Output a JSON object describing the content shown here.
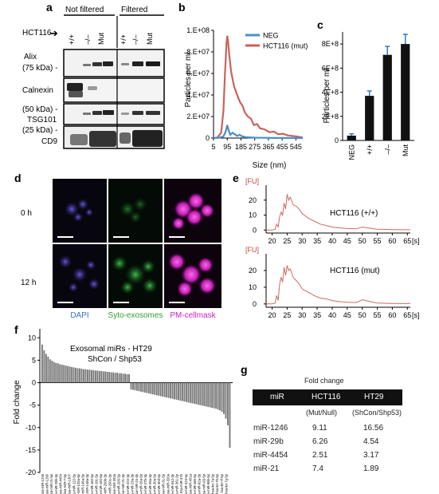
{
  "panel_a": {
    "letter": "a",
    "group_not_filtered": "Not filtered",
    "group_filtered": "Filtered",
    "cell_line": "HCT116",
    "lanes": [
      "+/+",
      "–/–",
      "Mut",
      "+/+",
      "–/–",
      "Mut"
    ],
    "blots": [
      {
        "label": "Alix",
        "sub": "(75 kDa) -"
      },
      {
        "label": "Calnexin",
        "sub": ""
      },
      {
        "label": "(50 kDa) -",
        "sub": "TSG101"
      },
      {
        "label": "(25 kDa) -",
        "sub": "CD9"
      }
    ]
  },
  "panel_b": {
    "letter": "b",
    "chart_data": {
      "type": "line",
      "xlabel": "Size (nm)",
      "ylabel": "Particles per ml",
      "x_ticks": [
        "5",
        "95",
        "185",
        "275",
        "365",
        "455",
        "545"
      ],
      "y_ticks": [
        "0",
        "2.E+07",
        "4.E+07",
        "6.E+07",
        "8.E+07",
        "1.E+08"
      ],
      "xlim": [
        5,
        590
      ],
      "ylim": [
        0,
        100000000
      ],
      "series": [
        {
          "name": "NEG",
          "color": "#4a90c8",
          "x": [
            5,
            40,
            70,
            85,
            95,
            105,
            115,
            130,
            145,
            160,
            175,
            190,
            210,
            240,
            280,
            340,
            420,
            520,
            590
          ],
          "y": [
            0,
            200000,
            1500000,
            6000000,
            12000000,
            7000000,
            3000000,
            5000000,
            3500000,
            2000000,
            3000000,
            1800000,
            1000000,
            700000,
            400000,
            200000,
            100000,
            50000,
            0
          ]
        },
        {
          "name": "HCT116 (mut)",
          "color": "#c8645a",
          "x": [
            5,
            30,
            55,
            70,
            80,
            90,
            95,
            100,
            110,
            120,
            130,
            140,
            150,
            165,
            180,
            195,
            210,
            230,
            250,
            270,
            290,
            310,
            340,
            370,
            400,
            430,
            460,
            490,
            520,
            550,
            590
          ],
          "y": [
            0,
            500000,
            5000000,
            25000000,
            60000000,
            88000000,
            95000000,
            90000000,
            75000000,
            62000000,
            55000000,
            48000000,
            44000000,
            38000000,
            33000000,
            30000000,
            24000000,
            20000000,
            18000000,
            12000000,
            13000000,
            9000000,
            8000000,
            5500000,
            6000000,
            3500000,
            4000000,
            2500000,
            2000000,
            1500000,
            500000
          ]
        }
      ]
    }
  },
  "panel_c": {
    "letter": "c",
    "chart_data": {
      "type": "bar",
      "ylabel": "Particles per ml",
      "categories": [
        "NEG",
        "+/+",
        "–/–",
        "Mut"
      ],
      "values": [
        40000000,
        370000000,
        710000000,
        800000000
      ],
      "errors": [
        15000000,
        40000000,
        70000000,
        80000000
      ],
      "y_ticks": [
        "0",
        "2E+8",
        "4E+8",
        "6E+8",
        "8E+8"
      ],
      "ylim": [
        0,
        900000000
      ],
      "bar_color": "#111111",
      "error_color": "#2f7cc0"
    }
  },
  "panel_d": {
    "letter": "d",
    "rows": [
      "0 h",
      "12 h"
    ],
    "channels": [
      {
        "label": "DAPI",
        "color": "#3a6fd0"
      },
      {
        "label": "Syto-exosomes",
        "color": "#2fa02f"
      },
      {
        "label": "PM-cellmask",
        "color": "#d020c0"
      }
    ]
  },
  "panel_e": {
    "letter": "e",
    "unit_y": "[FU]",
    "unit_x": "[s]",
    "chart_data": [
      {
        "type": "line",
        "title": "HCT116 (+/+)",
        "x_ticks": [
          "20",
          "25",
          "30",
          "35",
          "40",
          "45",
          "50",
          "55",
          "60",
          "65"
        ],
        "y_ticks": [
          "0",
          "10",
          "20"
        ],
        "xlim": [
          18,
          66
        ],
        "ylim": [
          -2,
          30
        ],
        "x": [
          18,
          20,
          21,
          21.5,
          22,
          22.5,
          23,
          23.5,
          24,
          24.5,
          25,
          25.5,
          26,
          27,
          28,
          29,
          30,
          32,
          34,
          36,
          38,
          40,
          42,
          45,
          48,
          50,
          55,
          60,
          66
        ],
        "y": [
          0,
          0,
          0.5,
          4,
          2,
          9,
          12,
          10,
          18,
          14,
          24,
          20,
          22,
          17,
          16,
          14,
          11,
          8,
          6,
          4,
          3,
          2,
          1.5,
          1,
          0.8,
          2,
          0.5,
          0.3,
          0.2
        ]
      },
      {
        "type": "line",
        "title": "HCT116 (mut)",
        "x_ticks": [
          "20",
          "25",
          "30",
          "35",
          "40",
          "45",
          "50",
          "55",
          "60",
          "65"
        ],
        "y_ticks": [
          "0",
          "10",
          "20"
        ],
        "xlim": [
          18,
          66
        ],
        "ylim": [
          -2,
          30
        ],
        "x": [
          18,
          20,
          21,
          21.5,
          22,
          22.5,
          23,
          23.5,
          24,
          24.5,
          25,
          25.5,
          26,
          27,
          28,
          29,
          30,
          32,
          34,
          36,
          38,
          40,
          42,
          45,
          48,
          50,
          55,
          60,
          66
        ],
        "y": [
          0,
          0,
          0.5,
          5,
          2,
          12,
          16,
          13,
          22,
          17,
          23,
          20,
          21,
          16,
          14,
          12,
          9,
          7,
          5,
          3.5,
          3,
          2,
          1.5,
          1,
          0.8,
          2.5,
          0.5,
          0.3,
          0.2
        ]
      }
    ]
  },
  "panel_f": {
    "letter": "f",
    "chart_data": {
      "type": "bar",
      "title": "Exosomal miRs - HT29",
      "subtitle": "ShCon / Shp53",
      "ylabel": "Fold change",
      "y_ticks": [
        "-20",
        "-15",
        "-10",
        "-5",
        "0",
        "5",
        "10"
      ],
      "ylim": [
        -20,
        12
      ],
      "n_bars": 96,
      "values": [
        8.5,
        7.2,
        6.4,
        5.8,
        5.2,
        4.9,
        4.6,
        4.4,
        4.3,
        4.1,
        4.0,
        3.9,
        3.8,
        3.7,
        3.6,
        3.5,
        3.4,
        3.3,
        3.2,
        3.2,
        3.1,
        3.0,
        3.0,
        2.9,
        2.9,
        2.8,
        2.8,
        2.7,
        2.7,
        2.6,
        2.6,
        2.5,
        2.5,
        2.4,
        2.4,
        2.3,
        2.3,
        2.2,
        2.2,
        2.1,
        2.1,
        2.0,
        2.0,
        1.9,
        1.9,
        -1.5,
        -1.6,
        -1.7,
        -1.8,
        -1.9,
        -2.0,
        -2.1,
        -2.2,
        -2.3,
        -2.4,
        -2.5,
        -2.6,
        -2.7,
        -2.8,
        -2.9,
        -3.0,
        -3.1,
        -3.2,
        -3.3,
        -3.4,
        -3.5,
        -3.6,
        -3.7,
        -3.8,
        -3.9,
        -4.0,
        -4.1,
        -4.2,
        -4.3,
        -4.4,
        -4.5,
        -4.6,
        -4.7,
        -4.8,
        -4.9,
        -5.0,
        -5.1,
        -5.2,
        -5.3,
        -5.4,
        -5.5,
        -5.6,
        -5.7,
        -5.8,
        -6.0,
        -6.2,
        -6.5,
        -7.0,
        -8.0,
        -9.5,
        -14.5
      ],
      "tick_labels": [
        "hsa-miR-1246",
        "hsa-miR-1290",
        "hsa-miR-21-5p",
        "hsa-miR-29b-3p",
        "hsa-miR-4454",
        "hsa-miR-7-5p",
        "hsa-miR-1307",
        "hsa-miR-122-5p",
        "hsa-miR-125a-5p",
        "hsa-miR-146a-5p",
        "hsa-miR-148a-3p",
        "hsa-miR-182-5p",
        "hsa-miR-191-5p",
        "hsa-miR-192-5p",
        "hsa-miR-200b-3p",
        "hsa-miR-200c-3p",
        "hsa-miR-203a",
        "hsa-miR-205-5p",
        "hsa-miR-21-3p",
        "hsa-miR-222-3p",
        "hsa-miR-23a-3p",
        "hsa-miR-24-3p",
        "hsa-miR-26a-5p",
        "hsa-miR-27b-3p",
        "hsa-miR-29a-3p",
        "hsa-miR-30a-5p",
        "hsa-miR-30d-5p",
        "hsa-miR-31-5p",
        "hsa-miR-320a",
        "hsa-miR-342-3p",
        "hsa-miR-361-5p",
        "hsa-miR-375",
        "hsa-miR-423-5p",
        "hsa-miR-451a",
        "hsa-miR-486-5p",
        "hsa-miR-92a-3p",
        "hsa-miR-93-5p",
        "hsa-miR-99b-5p",
        "hsa-let-7a-5p",
        "hsa-let-7b-5p",
        "hsa-let-7f-5p",
        "hsa-let-7g-5p"
      ]
    }
  },
  "panel_g": {
    "letter": "g",
    "title": "Fold change",
    "headers": [
      "miR",
      "HCT116",
      "HT29"
    ],
    "subheaders": [
      "(Mut/Null)",
      "(ShCon/Shp53)"
    ],
    "rows": [
      [
        "miR-1246",
        "9.11",
        "16.56"
      ],
      [
        "miR-29b",
        "6.26",
        "4.54"
      ],
      [
        "miR-4454",
        "2.51",
        "3.17"
      ],
      [
        "miR-21",
        "7.4",
        "1.89"
      ]
    ]
  }
}
